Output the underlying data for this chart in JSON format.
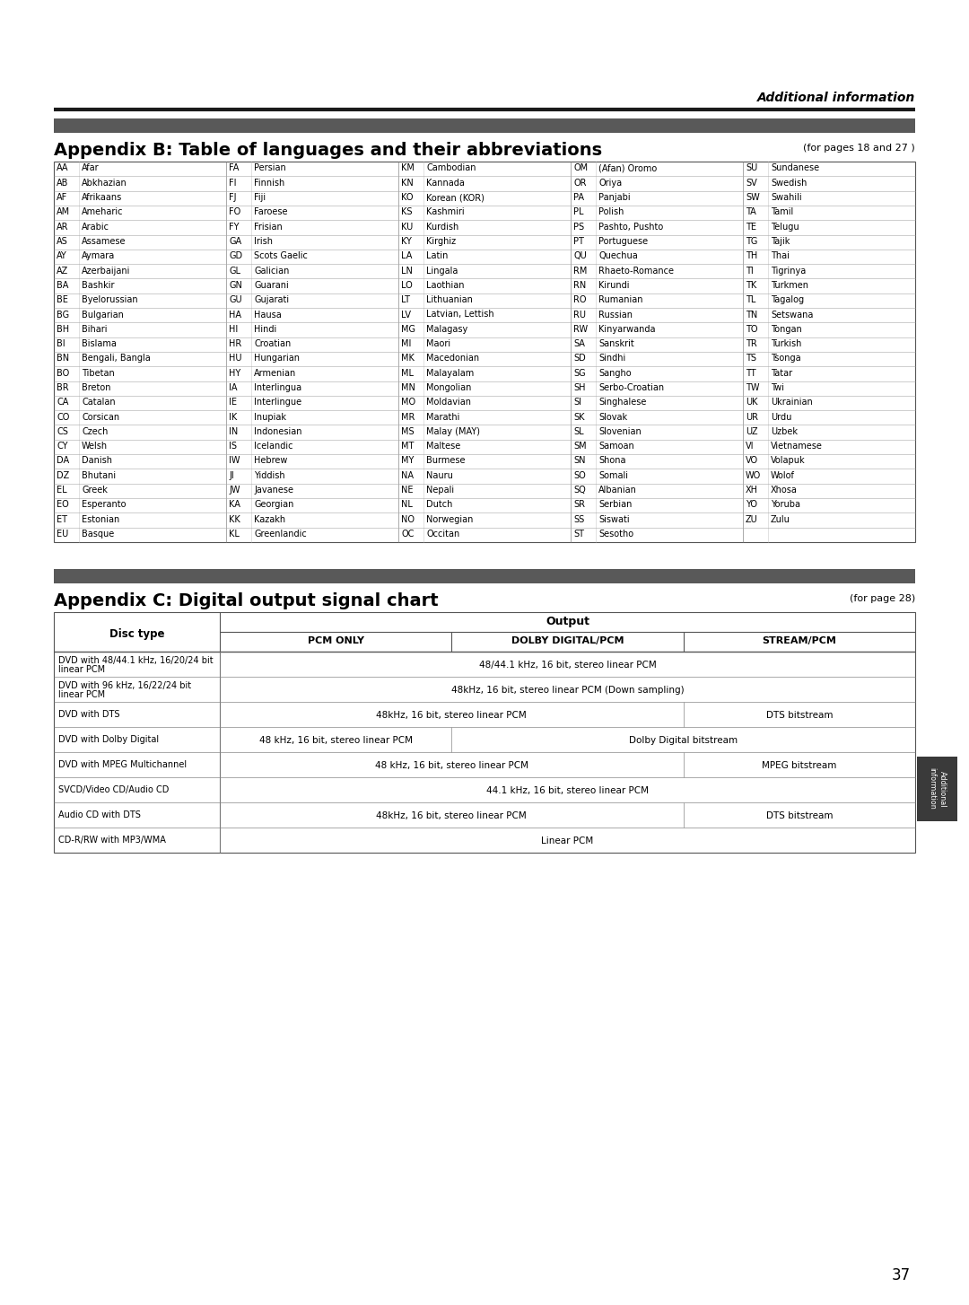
{
  "page_title": "Additional information",
  "appendix_b_title": "Appendix B: Table of languages and their abbreviations",
  "appendix_b_ref": "(for pages 18 and 27 )",
  "appendix_c_title": "Appendix C: Digital output signal chart",
  "appendix_c_ref": "(for page 28)",
  "page_number": "37",
  "languages": [
    [
      "AA",
      "Afar",
      "FA",
      "Persian",
      "KM",
      "Cambodian",
      "OM",
      "(Afan) Oromo",
      "SU",
      "Sundanese"
    ],
    [
      "AB",
      "Abkhazian",
      "FI",
      "Finnish",
      "KN",
      "Kannada",
      "OR",
      "Oriya",
      "SV",
      "Swedish"
    ],
    [
      "AF",
      "Afrikaans",
      "FJ",
      "Fiji",
      "KO",
      "Korean (KOR)",
      "PA",
      "Panjabi",
      "SW",
      "Swahili"
    ],
    [
      "AM",
      "Ameharic",
      "FO",
      "Faroese",
      "KS",
      "Kashmiri",
      "PL",
      "Polish",
      "TA",
      "Tamil"
    ],
    [
      "AR",
      "Arabic",
      "FY",
      "Frisian",
      "KU",
      "Kurdish",
      "PS",
      "Pashto, Pushto",
      "TE",
      "Telugu"
    ],
    [
      "AS",
      "Assamese",
      "GA",
      "Irish",
      "KY",
      "Kirghiz",
      "PT",
      "Portuguese",
      "TG",
      "Tajik"
    ],
    [
      "AY",
      "Aymara",
      "GD",
      "Scots Gaelic",
      "LA",
      "Latin",
      "QU",
      "Quechua",
      "TH",
      "Thai"
    ],
    [
      "AZ",
      "Azerbaijani",
      "GL",
      "Galician",
      "LN",
      "Lingala",
      "RM",
      "Rhaeto-Romance",
      "TI",
      "Tigrinya"
    ],
    [
      "BA",
      "Bashkir",
      "GN",
      "Guarani",
      "LO",
      "Laothian",
      "RN",
      "Kirundi",
      "TK",
      "Turkmen"
    ],
    [
      "BE",
      "Byelorussian",
      "GU",
      "Gujarati",
      "LT",
      "Lithuanian",
      "RO",
      "Rumanian",
      "TL",
      "Tagalog"
    ],
    [
      "BG",
      "Bulgarian",
      "HA",
      "Hausa",
      "LV",
      "Latvian, Lettish",
      "RU",
      "Russian",
      "TN",
      "Setswana"
    ],
    [
      "BH",
      "Bihari",
      "HI",
      "Hindi",
      "MG",
      "Malagasy",
      "RW",
      "Kinyarwanda",
      "TO",
      "Tongan"
    ],
    [
      "BI",
      "Bislama",
      "HR",
      "Croatian",
      "MI",
      "Maori",
      "SA",
      "Sanskrit",
      "TR",
      "Turkish"
    ],
    [
      "BN",
      "Bengali, Bangla",
      "HU",
      "Hungarian",
      "MK",
      "Macedonian",
      "SD",
      "Sindhi",
      "TS",
      "Tsonga"
    ],
    [
      "BO",
      "Tibetan",
      "HY",
      "Armenian",
      "ML",
      "Malayalam",
      "SG",
      "Sangho",
      "TT",
      "Tatar"
    ],
    [
      "BR",
      "Breton",
      "IA",
      "Interlingua",
      "MN",
      "Mongolian",
      "SH",
      "Serbo-Croatian",
      "TW",
      "Twi"
    ],
    [
      "CA",
      "Catalan",
      "IE",
      "Interlingue",
      "MO",
      "Moldavian",
      "SI",
      "Singhalese",
      "UK",
      "Ukrainian"
    ],
    [
      "CO",
      "Corsican",
      "IK",
      "Inupiak",
      "MR",
      "Marathi",
      "SK",
      "Slovak",
      "UR",
      "Urdu"
    ],
    [
      "CS",
      "Czech",
      "IN",
      "Indonesian",
      "MS",
      "Malay (MAY)",
      "SL",
      "Slovenian",
      "UZ",
      "Uzbek"
    ],
    [
      "CY",
      "Welsh",
      "IS",
      "Icelandic",
      "MT",
      "Maltese",
      "SM",
      "Samoan",
      "VI",
      "Vietnamese"
    ],
    [
      "DA",
      "Danish",
      "IW",
      "Hebrew",
      "MY",
      "Burmese",
      "SN",
      "Shona",
      "VO",
      "Volapuk"
    ],
    [
      "DZ",
      "Bhutani",
      "JI",
      "Yiddish",
      "NA",
      "Nauru",
      "SO",
      "Somali",
      "WO",
      "Wolof"
    ],
    [
      "EL",
      "Greek",
      "JW",
      "Javanese",
      "NE",
      "Nepali",
      "SQ",
      "Albanian",
      "XH",
      "Xhosa"
    ],
    [
      "EO",
      "Esperanto",
      "KA",
      "Georgian",
      "NL",
      "Dutch",
      "SR",
      "Serbian",
      "YO",
      "Yoruba"
    ],
    [
      "ET",
      "Estonian",
      "KK",
      "Kazakh",
      "NO",
      "Norwegian",
      "SS",
      "Siswati",
      "ZU",
      "Zulu"
    ],
    [
      "EU",
      "Basque",
      "KL",
      "Greenlandic",
      "OC",
      "Occitan",
      "ST",
      "Sesotho",
      "",
      ""
    ]
  ],
  "digital_output_rows": [
    {
      "disc_type": "DVD with 48/44.1 kHz, 16/20/24 bit\nlinear PCM",
      "pcm_only": "48/44.1 kHz, 16 bit, stereo linear PCM",
      "pcm_only_span": 3,
      "dolby": "",
      "stream": ""
    },
    {
      "disc_type": "DVD with 96 kHz, 16/22/24 bit\nlinear PCM",
      "pcm_only": "48kHz, 16 bit, stereo linear PCM (Down sampling)",
      "pcm_only_span": 3,
      "dolby": "",
      "stream": ""
    },
    {
      "disc_type": "DVD with DTS",
      "pcm_only": "48kHz, 16 bit, stereo linear PCM",
      "pcm_only_span": 2,
      "dolby": "",
      "stream": "DTS bitstream"
    },
    {
      "disc_type": "DVD with Dolby Digital",
      "pcm_only": "48 kHz, 16 bit, stereo linear PCM",
      "pcm_only_span": 1,
      "dolby": "Dolby Digital bitstream",
      "stream": ""
    },
    {
      "disc_type": "DVD with MPEG Multichannel",
      "pcm_only": "48 kHz, 16 bit, stereo linear PCM",
      "pcm_only_span": 2,
      "dolby": "",
      "stream": "MPEG bitstream"
    },
    {
      "disc_type": "SVCD/Video CD/Audio CD",
      "pcm_only": "44.1 kHz, 16 bit, stereo linear PCM",
      "pcm_only_span": 3,
      "dolby": "",
      "stream": ""
    },
    {
      "disc_type": "Audio CD with DTS",
      "pcm_only": "48kHz, 16 bit, stereo linear PCM",
      "pcm_only_span": 2,
      "dolby": "",
      "stream": "DTS bitstream"
    },
    {
      "disc_type": "CD-R/RW with MP3/WMA",
      "pcm_only": "Linear PCM",
      "pcm_only_span": 3,
      "dolby": "",
      "stream": ""
    }
  ],
  "bg_color": "#ffffff",
  "header_bar_color": "#595959",
  "title_color": "#000000",
  "text_color": "#000000"
}
